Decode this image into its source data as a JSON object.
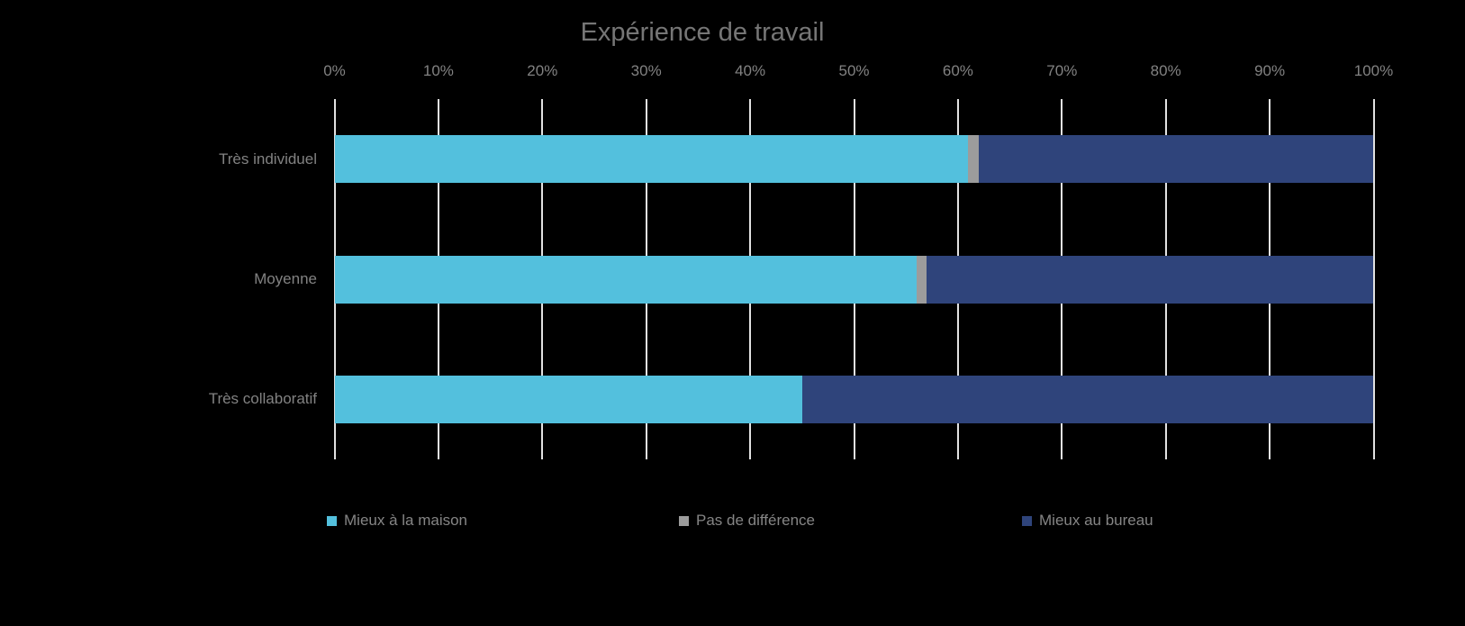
{
  "chart_data": {
    "type": "bar",
    "orientation": "horizontal",
    "stacked": true,
    "title": "Expérience de travail",
    "categories": [
      "Très individuel",
      "Moyenne",
      "Très collaboratif"
    ],
    "series": [
      {
        "name": "Mieux à la maison",
        "color": "#53C0DD",
        "values": [
          61,
          56,
          45
        ]
      },
      {
        "name": "Pas de différence",
        "color": "#9C9C9C",
        "values": [
          1,
          1,
          0
        ]
      },
      {
        "name": "Mieux au bureau",
        "color": "#2F447B",
        "values": [
          38,
          43,
          55
        ]
      }
    ],
    "x_axis": {
      "position": "top",
      "min": 0,
      "max": 100,
      "tick_labels": [
        "0%",
        "10%",
        "20%",
        "30%",
        "40%",
        "50%",
        "60%",
        "70%",
        "80%",
        "90%",
        "100%"
      ]
    },
    "grid": true,
    "legend_position": "bottom"
  },
  "colors": {
    "background": "#000000",
    "title_text": "#767676",
    "axis_text": "#828282",
    "legend_text": "#858585",
    "gridline": "#E2E2E2"
  }
}
